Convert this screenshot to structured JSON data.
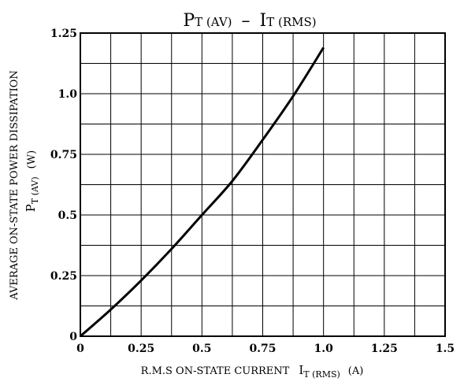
{
  "chart_data": {
    "type": "line",
    "title": {
      "part1_main": "P",
      "part1_sub": "T (AV)",
      "separator": "–",
      "part2_main": "I",
      "part2_sub": "T (RMS)"
    },
    "xlabel": {
      "text": "R.M.S ON-STATE CURRENT",
      "symbol": "I",
      "symbol_sub": "T (RMS)",
      "unit": "(A)"
    },
    "ylabel": {
      "line1": "AVERAGE ON-STATE POWER DISSIPATION",
      "symbol": "P",
      "symbol_sub": "T (AV)",
      "unit": "(W)"
    },
    "xlim": [
      0,
      1.5
    ],
    "ylim": [
      0,
      1.25
    ],
    "x_ticks": [
      0,
      0.25,
      0.5,
      0.75,
      1.0,
      1.25,
      1.5
    ],
    "x_tick_labels": [
      "0",
      "0.25",
      "0.5",
      "0.75",
      "1.0",
      "1.25",
      "1.5"
    ],
    "y_ticks": [
      0,
      0.25,
      0.5,
      0.75,
      1.0,
      1.25
    ],
    "y_tick_labels": [
      "0",
      "0.25",
      "0.5",
      "0.75",
      "1.0",
      "1.25"
    ],
    "grid": true,
    "x_grid_step": 0.125,
    "y_grid_step": 0.125,
    "series": [
      {
        "x": [
          0,
          0.125,
          0.25,
          0.375,
          0.5,
          0.625,
          0.75,
          0.875,
          1.0
        ],
        "y": [
          0,
          0.11,
          0.23,
          0.36,
          0.5,
          0.64,
          0.81,
          0.99,
          1.19
        ]
      }
    ]
  }
}
